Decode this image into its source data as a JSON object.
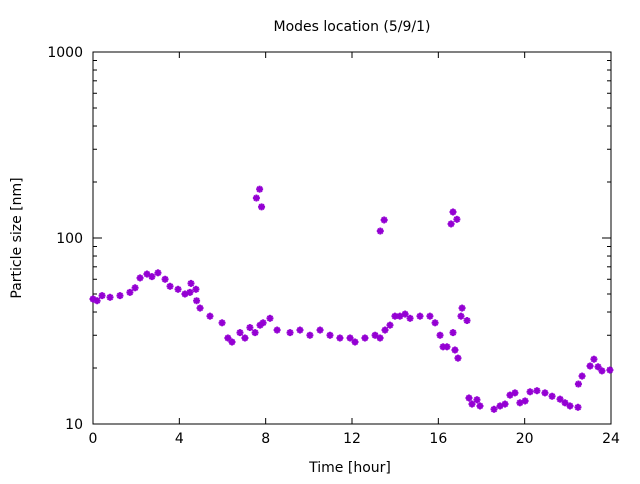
{
  "chart_data": {
    "type": "scatter",
    "title": "Modes location (5/9/1)",
    "xlabel": "Time [hour]",
    "ylabel": "Particle size [nm]",
    "xlim": [
      0,
      24
    ],
    "ylim": [
      10,
      1000
    ],
    "yscale": "log",
    "xticks": [
      0,
      4,
      8,
      12,
      16,
      20,
      24
    ],
    "xtick_labels": [
      "0",
      "4",
      "8",
      "12",
      "16",
      "20",
      "24"
    ],
    "yticks": [
      10,
      100,
      1000
    ],
    "ytick_labels": [
      "10",
      "100",
      "1000"
    ],
    "grid": false,
    "legend": "none",
    "marker_color": "#9400d3",
    "series": [
      {
        "name": "modes",
        "x": [
          0.0,
          0.19,
          0.42,
          0.79,
          1.25,
          1.71,
          1.95,
          2.18,
          2.5,
          2.73,
          3.01,
          3.34,
          3.57,
          3.94,
          4.26,
          4.49,
          4.54,
          4.77,
          4.8,
          4.96,
          5.42,
          5.98,
          6.25,
          6.44,
          6.81,
          7.04,
          7.27,
          7.51,
          7.74,
          7.88,
          8.2,
          8.53,
          9.13,
          9.59,
          10.05,
          10.52,
          10.98,
          11.44,
          11.91,
          12.14,
          12.6,
          13.07,
          13.3,
          13.53,
          13.76,
          13.99,
          14.22,
          14.46,
          14.69,
          15.15,
          15.61,
          15.85,
          16.08,
          16.22,
          16.4,
          16.68,
          16.77,
          16.91,
          17.05,
          17.1,
          17.33,
          17.42,
          17.56,
          17.79,
          17.93,
          18.58,
          18.86,
          19.09,
          19.32,
          19.55,
          19.78,
          20.02,
          20.25,
          20.57,
          20.94,
          21.27,
          21.64,
          21.87,
          22.1,
          22.47,
          22.49,
          22.66,
          23.03,
          23.21,
          23.4,
          23.58,
          23.95,
          7.57,
          7.72,
          7.81,
          13.31,
          13.49,
          16.59,
          16.68,
          16.86
        ],
        "y": [
          47,
          46,
          49,
          48,
          49,
          51,
          54,
          61,
          64,
          62,
          65,
          60,
          55,
          53,
          50,
          51,
          57,
          53,
          46,
          42,
          38,
          35,
          29,
          27.6,
          31,
          29,
          33,
          31,
          34,
          35,
          37,
          32,
          31,
          32,
          30,
          32,
          30,
          29,
          29,
          27.6,
          29,
          30,
          29,
          32,
          34,
          38,
          38,
          39,
          37,
          38,
          38,
          35,
          30,
          26,
          26,
          31,
          25,
          22.6,
          38,
          42,
          36,
          13.8,
          12.8,
          13.5,
          12.5,
          12.0,
          12.5,
          12.8,
          14.3,
          14.7,
          13.0,
          13.3,
          14.9,
          15.1,
          14.7,
          14.1,
          13.6,
          13.0,
          12.5,
          12.3,
          16.4,
          18.1,
          20.5,
          22.3,
          20.3,
          19.3,
          19.5,
          164,
          183,
          147,
          109,
          125,
          119,
          138,
          126
        ]
      }
    ]
  }
}
